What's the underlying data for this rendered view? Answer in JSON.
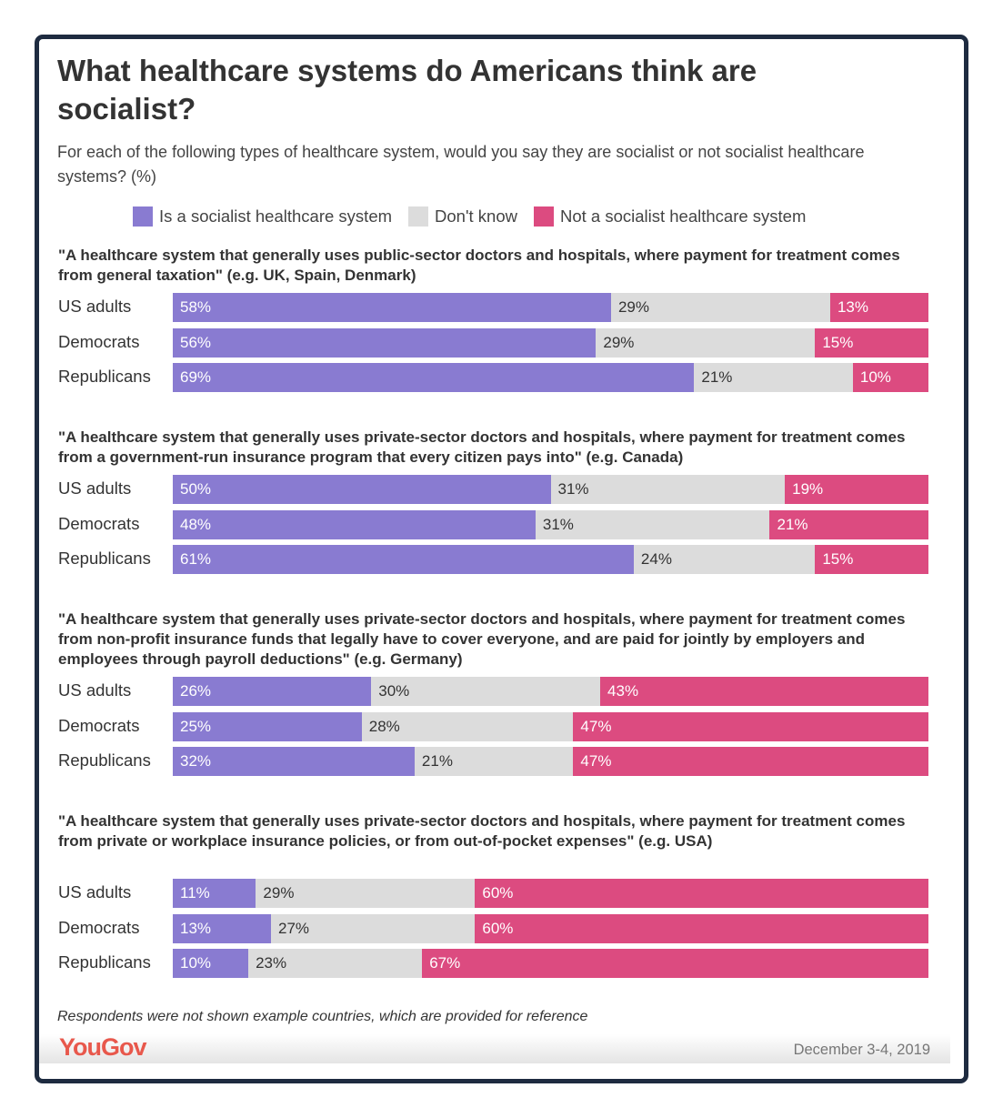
{
  "chart_data": {
    "type": "bar",
    "orientation": "horizontal",
    "stacked": true,
    "title": "What healthcare systems do Americans think are socialist?",
    "subtitle": "For each of the following types of healthcare system, would you say they are socialist or not socialist healthcare systems? (%)",
    "legend_position": "top",
    "xlim": [
      0,
      100
    ],
    "series_meta": [
      {
        "name": "Is a socialist healthcare system",
        "color": "#897bd1",
        "text_color": "#ffffff"
      },
      {
        "name": "Don't know",
        "color": "#dcdcdc",
        "text_color": "#333333"
      },
      {
        "name": "Not a socialist healthcare system",
        "color": "#dc4b80",
        "text_color": "#ffffff"
      }
    ],
    "groups": [
      {
        "title": "\"A healthcare system that generally uses public-sector doctors and hospitals, where payment for treatment comes from general taxation\" (e.g. UK, Spain, Denmark)",
        "rows": [
          {
            "label": "US adults",
            "values": [
              58,
              29,
              13
            ]
          },
          {
            "label": "Democrats",
            "values": [
              56,
              29,
              15
            ]
          },
          {
            "label": "Republicans",
            "values": [
              69,
              21,
              10
            ]
          }
        ]
      },
      {
        "title": "\"A healthcare system that generally uses private-sector doctors and hospitals, where payment for treatment comes from a government-run insurance program that every citizen pays into\" (e.g. Canada)",
        "rows": [
          {
            "label": "US adults",
            "values": [
              50,
              31,
              19
            ]
          },
          {
            "label": "Democrats",
            "values": [
              48,
              31,
              21
            ]
          },
          {
            "label": "Republicans",
            "values": [
              61,
              24,
              15
            ]
          }
        ]
      },
      {
        "title": "\"A healthcare system that generally uses private-sector doctors and hospitals, where payment for treatment comes from non-profit insurance funds that legally have to cover everyone, and are paid for jointly by employers and employees through payroll deductions\" (e.g. Germany)",
        "rows": [
          {
            "label": "US adults",
            "values": [
              26,
              30,
              43
            ]
          },
          {
            "label": "Democrats",
            "values": [
              25,
              28,
              47
            ]
          },
          {
            "label": "Republicans",
            "values": [
              32,
              21,
              47
            ]
          }
        ]
      },
      {
        "title": "\"A healthcare system that generally uses private-sector doctors and hospitals, where payment for treatment comes from private or workplace insurance policies, or from out-of-pocket expenses\" (e.g. USA)",
        "rows": [
          {
            "label": "US adults",
            "values": [
              11,
              29,
              60
            ]
          },
          {
            "label": "Democrats",
            "values": [
              13,
              27,
              60
            ]
          },
          {
            "label": "Republicans",
            "values": [
              10,
              23,
              67
            ]
          }
        ]
      }
    ]
  },
  "footer": {
    "note": "Respondents were not shown example countries, which are provided for reference",
    "logo": "YouGov",
    "date": "December 3-4, 2019"
  }
}
